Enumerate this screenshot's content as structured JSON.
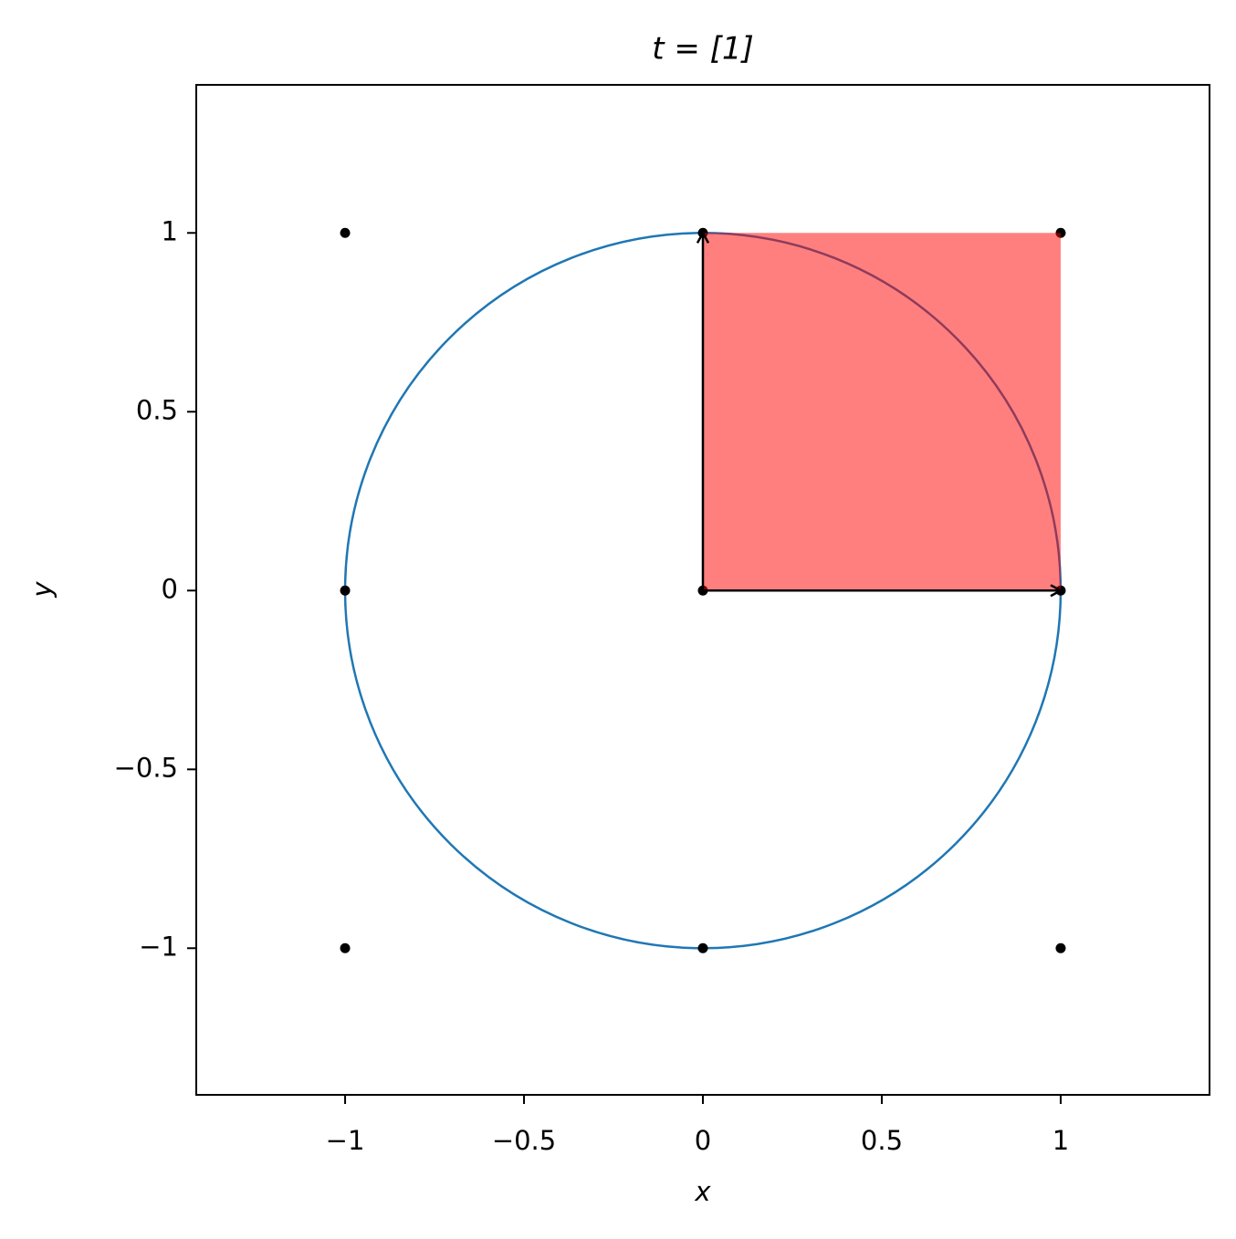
{
  "chart_data": {
    "type": "scatter",
    "title": "t = [1]",
    "xlabel": "x",
    "ylabel": "y",
    "xlim": [
      -1.416,
      1.416
    ],
    "ylim": [
      -1.41,
      1.414
    ],
    "xticks": [
      {
        "value": -1,
        "label": "−1"
      },
      {
        "value": -0.5,
        "label": "−0.5"
      },
      0,
      0.5,
      1
    ],
    "yticks": [
      {
        "value": -1,
        "label": "−1"
      },
      {
        "value": -0.5,
        "label": "−0.5"
      },
      0,
      0.5,
      1
    ],
    "points": {
      "x": [
        -1,
        0,
        1,
        -1,
        0,
        1,
        -1,
        0,
        1
      ],
      "y": [
        1,
        1,
        1,
        0,
        0,
        0,
        -1,
        -1,
        -1
      ],
      "color": "#000000"
    },
    "circle": {
      "cx": 0,
      "cy": 0,
      "r": 1,
      "color": "#1f77b4"
    },
    "square": {
      "x0": 0,
      "x1": 1,
      "y0": 0,
      "y1": 1,
      "color": "#ff0000",
      "opacity": 0.5
    },
    "vectors": [
      {
        "x0": 0,
        "y0": 0,
        "x1": 1,
        "y1": 0
      },
      {
        "x0": 0,
        "y0": 0,
        "x1": 0,
        "y1": 1
      }
    ],
    "vector_color": "#000000"
  }
}
